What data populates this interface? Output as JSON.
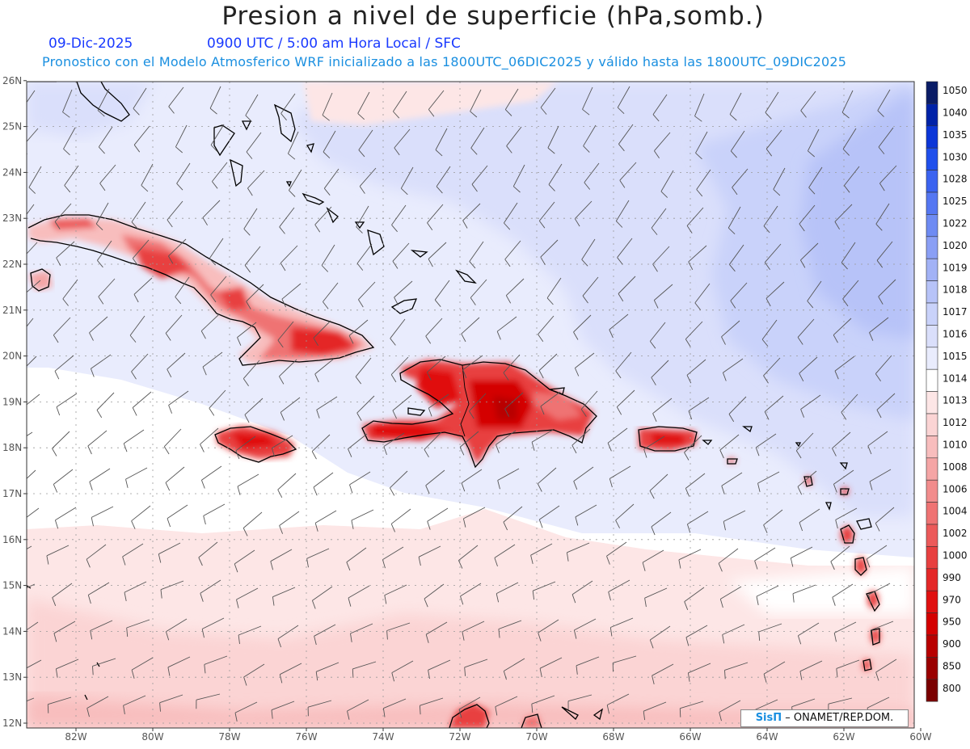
{
  "title": "Presion a nivel de superficie (hPa,somb.)",
  "date": "09-Dic-2025",
  "time": "0900 UTC / 5:00 am Hora Local / SFC",
  "model_info": "Pronostico con el Modelo Atmosferico WRF inicializado a las 1800UTC_06DIC2025 y válido hasta las  1800UTC_09DIC2025",
  "credit": {
    "logo": "SisΠ",
    "text": "– ONAMET/REP.DOM."
  },
  "map": {
    "lon_range": [
      -83.3,
      -60
    ],
    "lat_range": [
      11.9,
      26.1
    ],
    "lon_ticks": [
      "82W",
      "80W",
      "78W",
      "76W",
      "74W",
      "72W",
      "70W",
      "68W",
      "66W",
      "64W",
      "62W",
      "60W"
    ],
    "lat_ticks": [
      "12N",
      "13N",
      "14N",
      "15N",
      "16N",
      "17N",
      "18N",
      "19N",
      "20N",
      "21N",
      "22N",
      "23N",
      "24N",
      "25N",
      "26N"
    ],
    "grid": true
  },
  "colorbar": {
    "levels": [
      "1050",
      "1040",
      "1035",
      "1030",
      "1028",
      "1025",
      "1022",
      "1020",
      "1019",
      "1018",
      "1017",
      "1016",
      "1015",
      "1014",
      "1013",
      "1012",
      "1010",
      "1008",
      "1006",
      "1004",
      "1002",
      "1000",
      "990",
      "970",
      "950",
      "900",
      "850",
      "800"
    ],
    "colors": [
      "#0a1c66",
      "#0022a8",
      "#0b36d8",
      "#1f4fec",
      "#3b63f0",
      "#5577f2",
      "#6e8bf3",
      "#8a9ff5",
      "#a2b2f6",
      "#b7c3f8",
      "#c9d2fa",
      "#dadffb",
      "#e9ecfd",
      "#ffffff",
      "#fde6e6",
      "#fbd4d4",
      "#f8bdbd",
      "#f5a5a5",
      "#f28c8c",
      "#ef7373",
      "#ec5a5a",
      "#e84040",
      "#e42727",
      "#e01010",
      "#d40000",
      "#b80000",
      "#9a0000",
      "#7a0000"
    ]
  }
}
